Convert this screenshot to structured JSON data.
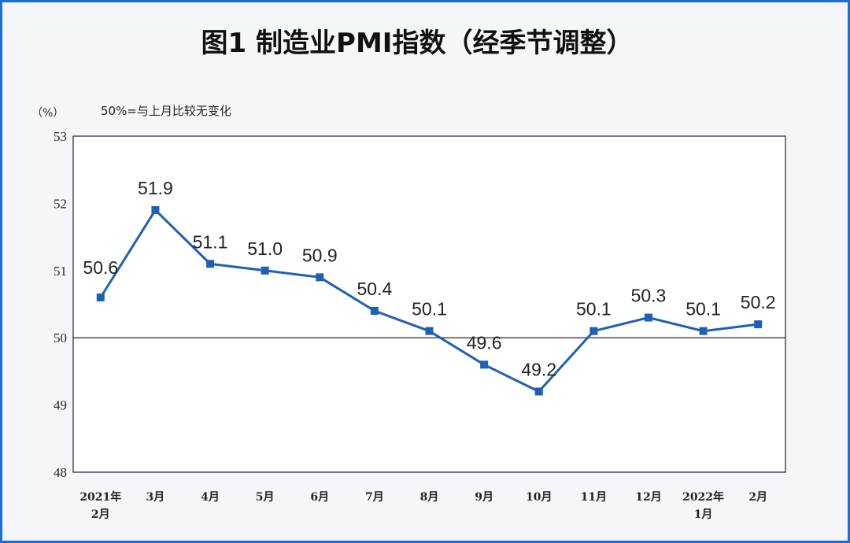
{
  "chart_data": {
    "type": "line",
    "title": "图1 制造业PMI指数（经季节调整）",
    "unit": "（%）",
    "note": "50%=与上月比较无变化",
    "categories": [
      [
        "2021年",
        "2月"
      ],
      [
        "3月"
      ],
      [
        "4月"
      ],
      [
        "5月"
      ],
      [
        "6月"
      ],
      [
        "7月"
      ],
      [
        "8月"
      ],
      [
        "9月"
      ],
      [
        "10月"
      ],
      [
        "11月"
      ],
      [
        "12月"
      ],
      [
        "2022年",
        "1月"
      ],
      [
        "2月"
      ]
    ],
    "values": [
      50.6,
      51.9,
      51.1,
      51.0,
      50.9,
      50.4,
      50.1,
      49.6,
      49.2,
      50.1,
      50.3,
      50.1,
      50.2
    ],
    "data_labels": [
      "50.6",
      "51.9",
      "51.1",
      "51.0",
      "50.9",
      "50.4",
      "50.1",
      "49.6",
      "49.2",
      "50.1",
      "50.3",
      "50.1",
      "50.2"
    ],
    "yticks": [
      "53",
      "52",
      "51",
      "50",
      "49",
      "48"
    ],
    "ylim": [
      48,
      53
    ],
    "reference_line": 50,
    "grid": false,
    "line_color": "#1f5fb4"
  }
}
